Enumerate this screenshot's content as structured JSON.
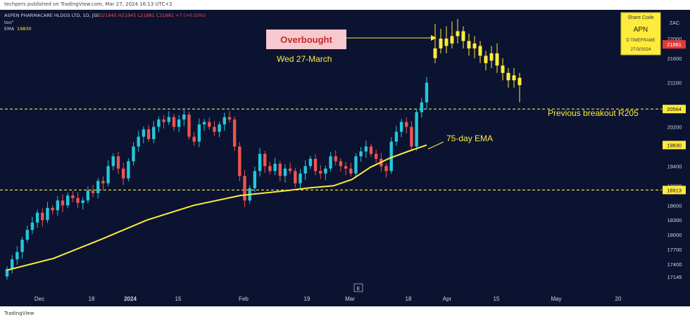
{
  "header_text": "techpers published on TradingView.com, Mar 27, 2024 16:13 UTC+2",
  "footer_text": "TradingView",
  "symbol_line": {
    "name": "ASPEN PHARMACARE HLDGS LTD, 1D, JSE",
    "ohlc": "O21945 H21945 L21881 C21881 +7 (+0.03%)",
    "study1": "too\"",
    "study2_label": "EMA",
    "study2_value": "19830"
  },
  "share_box": {
    "title": "Share Code",
    "code": "APN",
    "timeframe": "D TIMEFRAME",
    "date": "27/3/2024"
  },
  "currency": "ZAC",
  "annotations": {
    "overbought": "Overbought",
    "date_label": "Wed 27-March",
    "breakout": "Previous breakout R205",
    "ema_label": "75-day EMA"
  },
  "axis_badge": "E",
  "colors": {
    "background": "#0b1331",
    "up": "#26c6da",
    "down": "#ef5350",
    "recent": "#ffeb3b",
    "ema": "#ffeb3b",
    "level": "#ffeb3b",
    "overbought_bg": "#f8c8cf",
    "overbought_text": "#c62828",
    "price_tag": "#e53935"
  },
  "chart_data": {
    "type": "candlestick",
    "y_range": [
      17000,
      22500
    ],
    "y_ticks": [
      17145,
      17400,
      17700,
      18000,
      18300,
      18600,
      19000,
      19400,
      20200,
      20600,
      21100,
      21600,
      22000
    ],
    "y_tick_labels": [
      "17145",
      "17400",
      "17700",
      "18000",
      "18300",
      "18600",
      "19000",
      "19400",
      "20200",
      "20600",
      "21100",
      "21600",
      "22000"
    ],
    "x_labels": [
      "Dec",
      "18",
      "2024",
      "15",
      "Feb",
      "19",
      "Mar",
      "18",
      "Apr",
      "15",
      "May",
      "20"
    ],
    "price_tags": [
      {
        "label": "21881",
        "value": 21881,
        "kind": "last"
      },
      {
        "label": "20564",
        "value": 20564,
        "kind": "level"
      },
      {
        "label": "19830",
        "value": 19830,
        "kind": "ema"
      },
      {
        "label": "18913",
        "value": 18913,
        "kind": "level"
      }
    ],
    "levels": [
      20564,
      18913
    ],
    "candles_count": 84,
    "ema_points": [
      [
        0,
        17280
      ],
      [
        10,
        17520
      ],
      [
        20,
        17900
      ],
      [
        30,
        18300
      ],
      [
        40,
        18600
      ],
      [
        50,
        18800
      ],
      [
        60,
        18900
      ],
      [
        65,
        18960
      ],
      [
        70,
        19000
      ],
      [
        74,
        19130
      ],
      [
        78,
        19380
      ],
      [
        82,
        19560
      ],
      [
        86,
        19700
      ],
      [
        90,
        19830
      ]
    ]
  }
}
